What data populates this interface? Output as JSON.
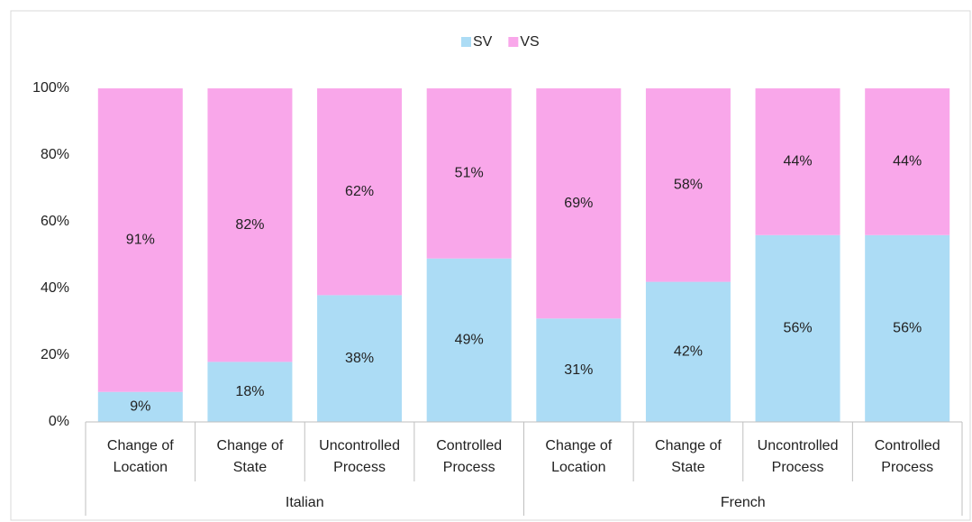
{
  "chart_data": {
    "type": "stacked_bar",
    "categories": [
      "Change of Location",
      "Change of State",
      "Uncontrolled Process",
      "Controlled Process",
      "Change of Location",
      "Change of State",
      "Uncontrolled Process",
      "Controlled Process"
    ],
    "groups": [
      "Italian",
      "French"
    ],
    "series": [
      {
        "name": "SV",
        "color": "#acdcf5",
        "values": [
          9,
          18,
          38,
          49,
          31,
          42,
          56,
          56
        ],
        "value_labels": [
          "9%",
          "18%",
          "38%",
          "49%",
          "31%",
          "42%",
          "56%",
          "56%"
        ]
      },
      {
        "name": "VS",
        "color": "#f9a7ea",
        "values": [
          91,
          82,
          62,
          51,
          69,
          58,
          44,
          44
        ],
        "value_labels": [
          "91%",
          "82%",
          "62%",
          "51%",
          "69%",
          "58%",
          "44%",
          "44%"
        ]
      }
    ],
    "ylim": [
      0,
      100
    ],
    "yticks": [
      {
        "value": 0,
        "label": "0%"
      },
      {
        "value": 20,
        "label": "20%"
      },
      {
        "value": 40,
        "label": "40%"
      },
      {
        "value": 60,
        "label": "60%"
      },
      {
        "value": 80,
        "label": "80%"
      },
      {
        "value": 100,
        "label": "100%"
      }
    ],
    "legend": "top",
    "grid": false
  }
}
